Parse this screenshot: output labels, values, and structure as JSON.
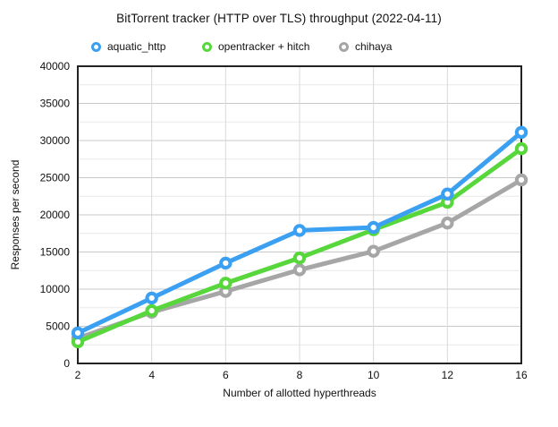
{
  "title": "BitTorrent tracker (HTTP over TLS) throughput (2022-04-11)",
  "axes": {
    "x_label": "Number of allotted hyperthreads",
    "y_label": "Responses per second",
    "x_tick_labels": [
      "2",
      "4",
      "6",
      "8",
      "10",
      "12",
      "16"
    ],
    "y_tick_labels": [
      "0",
      "5000",
      "10000",
      "15000",
      "20000",
      "25000",
      "30000",
      "35000",
      "40000"
    ]
  },
  "legend": [
    {
      "label": "aquatic_http",
      "color": "#3BA0F2"
    },
    {
      "label": "opentracker + hitch",
      "color": "#58D73D"
    },
    {
      "label": "chihaya",
      "color": "#A6A6A6"
    }
  ],
  "chart_data": {
    "type": "line",
    "title": "BitTorrent tracker (HTTP over TLS) throughput (2022-04-11)",
    "xlabel": "Number of allotted hyperthreads",
    "ylabel": "Responses per second",
    "categories": [
      2,
      4,
      6,
      8,
      10,
      12,
      16
    ],
    "x_axis_type": "categorical-even-spacing",
    "ylim": [
      0,
      40000
    ],
    "y_major_step": 5000,
    "y_minor_step": 2500,
    "grid": true,
    "legend_position": "top",
    "marker_style": "open-circle",
    "series": [
      {
        "name": "aquatic_http",
        "color": "#3BA0F2",
        "values": [
          4100,
          8800,
          13500,
          17900,
          18300,
          22800,
          31100
        ]
      },
      {
        "name": "opentracker + hitch",
        "color": "#58D73D",
        "values": [
          2900,
          7100,
          10800,
          14200,
          18000,
          21700,
          28900
        ]
      },
      {
        "name": "chihaya",
        "color": "#A6A6A6",
        "values": [
          3400,
          6900,
          9700,
          12600,
          15100,
          18900,
          24700
        ]
      }
    ]
  },
  "colors": {
    "major_grid": "#c9c9c9",
    "minor_grid": "#e8e8e8",
    "vertical_grid": "#d9d9d9",
    "plot_border": "#222222",
    "background": "#ffffff"
  }
}
